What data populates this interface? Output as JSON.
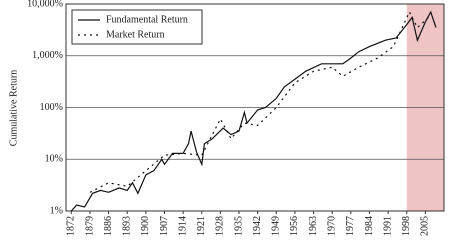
{
  "chart_data": {
    "type": "line",
    "y_label": "Cumulative Return",
    "xlim": [
      1870,
      2012
    ],
    "xticks": [
      1872,
      1879,
      1886,
      1893,
      1900,
      1907,
      1914,
      1921,
      1928,
      1935,
      1942,
      1949,
      1956,
      1963,
      1970,
      1977,
      1984,
      1991,
      1998,
      2005
    ],
    "ylim": [
      1,
      10000
    ],
    "log_y": true,
    "yticks": [
      {
        "value": 1,
        "label": "1%"
      },
      {
        "value": 10,
        "label": "10%"
      },
      {
        "value": 100,
        "label": "100%"
      },
      {
        "value": 1000,
        "label": "1,000%"
      },
      {
        "value": 10000,
        "label": "10,000%"
      }
    ],
    "grid": true,
    "legend": "upper left",
    "highlight": {
      "x": [
        1998,
        2012
      ],
      "color": "#efc4c4"
    },
    "series": [
      {
        "name": "Fundamental Return",
        "color": "#111111",
        "dash": "none",
        "x": [
          1872,
          1874,
          1877,
          1880,
          1883,
          1886,
          1890,
          1893,
          1895,
          1897,
          1900,
          1903,
          1906,
          1907,
          1910,
          1914,
          1916,
          1917,
          1919,
          1921,
          1922,
          1925,
          1929,
          1932,
          1935,
          1937,
          1938,
          1942,
          1945,
          1949,
          1952,
          1956,
          1960,
          1966,
          1970,
          1974,
          1977,
          1980,
          1984,
          1990,
          1994,
          1998,
          2000,
          2002,
          2005,
          2007,
          2009
        ],
        "values": [
          1,
          1.3,
          1.2,
          2.2,
          2.5,
          2.3,
          2.8,
          2.5,
          3.5,
          2.2,
          5,
          6,
          10,
          8,
          13,
          13,
          20,
          35,
          14,
          8,
          20,
          25,
          40,
          30,
          35,
          80,
          50,
          90,
          100,
          150,
          250,
          350,
          500,
          700,
          700,
          700,
          900,
          1200,
          1500,
          2000,
          2200,
          4000,
          5500,
          2000,
          4500,
          7000,
          3500
        ]
      },
      {
        "name": "Market Return",
        "color": "#111111",
        "dash": "2,4",
        "x": [
          1879,
          1886,
          1893,
          1900,
          1907,
          1914,
          1921,
          1928,
          1932,
          1937,
          1942,
          1949,
          1956,
          1963,
          1970,
          1974,
          1980,
          1987,
          1993,
          1999,
          2002,
          2007
        ],
        "values": [
          2.3,
          3.5,
          3,
          6,
          12,
          13,
          12,
          60,
          25,
          50,
          45,
          100,
          300,
          500,
          600,
          400,
          600,
          900,
          1500,
          7000,
          3500,
          6000
        ]
      }
    ]
  }
}
